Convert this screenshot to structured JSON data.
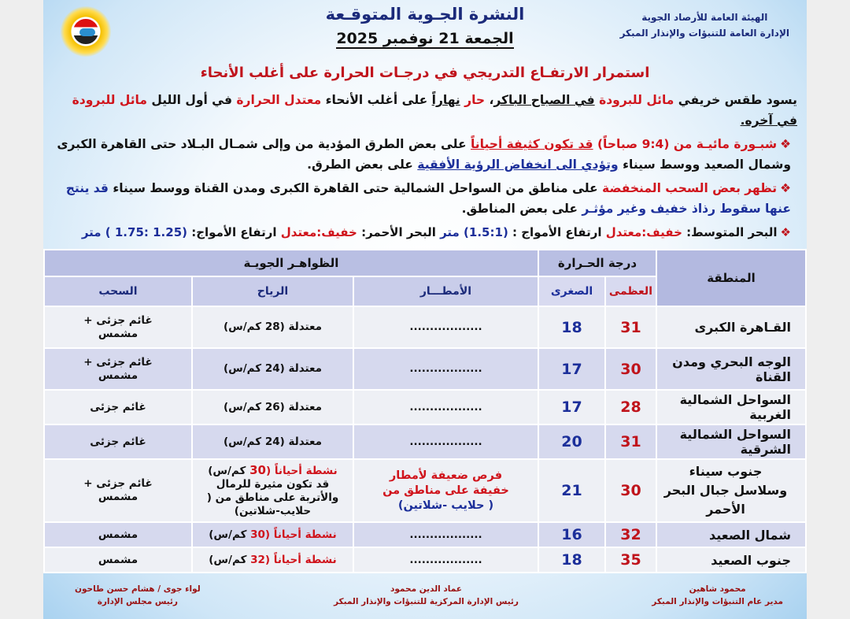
{
  "header": {
    "org_line1": "الهيئة العامة للأرصاد الجوية",
    "org_line2": "الإدارة العامة للتنبؤات والإنذار المبكر",
    "title": "النشرة الجـوية المتوقـعة",
    "date": "الجمعة 21 نوفمبر 2025",
    "logo_text": "EMA"
  },
  "headline": "استمرار الارتفـاع التدريجي في درجـات الحرارة  على أغلب الأنحاء",
  "summary": {
    "p1": "يسود طقس خريفي ",
    "p2": "مائل للبرودة",
    "p3": "في الصباح الباكر",
    "p4": "، ",
    "p5": "حار",
    "p6": " ",
    "p7": "نهاراً",
    "p8": " على أغلب الأنحاء  ",
    "p9": "معتدل الحرارة",
    "p10": " في أول الليل ",
    "p11": "مائل للبرودة",
    "p12": " ",
    "p13": "في آخره."
  },
  "bullets": {
    "fog": {
      "a": "شبـورة مائيـة من (9:4 صباحاً) ",
      "b": "قد تكون كثيفة أحياناً",
      "c": " على بعض الطرق المؤدية من وإلى شمـال البـلاد حتى القاهرة الكبرى وشمال الصعيد ووسط سيناء ",
      "d": "وتؤدي الى انخفاض الرؤية الأفقية",
      "e": " على بعض الطرق."
    },
    "clouds": {
      "a": "تظهر بعض السحب المنخفضة",
      "b": " على مناطق من السواحل الشمالية حتى القاهرة الكبرى ومدن القناة ووسط سيناء ",
      "c": "قد ينتج عنها سقوط رذاذ خفيف وغير مؤثـر",
      "d": " على بعض المناطق."
    },
    "sea": {
      "a": "البحر المتوسط: ",
      "b": "خفيف:معتدل",
      "c": "  ارتفاع الأمواج : ",
      "d": "(1.5:1) متر",
      "e": "     البحر الأحمر: ",
      "f": "خفيف:معتدل",
      "g": " ارتفاع الأمواج: ",
      "h": "(1.25 :1.75 ) متر"
    }
  },
  "table": {
    "headers": {
      "region": "المنطقة",
      "temperature": "درجة الحـرارة",
      "max": "العظمى",
      "min": "الصغرى",
      "phenomena": "الظواهـر الجويـة",
      "rain": "الأمطـــار",
      "wind": "الرياح",
      "clouds": "السحب"
    },
    "rows": [
      {
        "region": "القـاهرة الكبرى",
        "max": "31",
        "min": "18",
        "rain": "..................",
        "wind": "معتدلة (28 كم/س)",
        "clouds": "غائم جزئى + مشمس"
      },
      {
        "region": "الوجه البحري ومدن القناة",
        "max": "30",
        "min": "17",
        "rain": "..................",
        "wind": "معتدلة (24 كم/س)",
        "clouds": "غائم جزئى + مشمس"
      },
      {
        "region": "السواحل الشمالية الغربية",
        "max": "28",
        "min": "17",
        "rain": "..................",
        "wind": "معتدلة (26 كم/س)",
        "clouds": "غائم جزئى"
      },
      {
        "region": "السواحل الشمالية الشرقية",
        "max": "31",
        "min": "20",
        "rain": "..................",
        "wind": "معتدلة (24 كم/س)",
        "clouds": "غائم جزئى"
      },
      {
        "region": "جنوب سيناء",
        "region2": "وسلاسل جبال البحر الأحمر",
        "max": "30",
        "min": "21",
        "rain": "فرص ضعيفة لأمطار خفيفة على مناطق من",
        "rain2": "( حلايب -شلاتين)",
        "wind_a": "نشطة أحياناً (",
        "wind_b": "30",
        "wind_c": " كم/س)",
        "wind2": "قد تكون مثيرة للرمال والأتربة على مناطق من ( حلايب-شلاتين)",
        "clouds": "غائم جزئى + مشمس"
      },
      {
        "region": "شمال الصعيد",
        "max": "32",
        "min": "16",
        "rain": "..................",
        "wind_a": "نشطة أحياناً (",
        "wind_b": "30",
        "wind_c": " كم/س)",
        "clouds": "مشمس"
      },
      {
        "region": "جنوب الصعيد",
        "max": "35",
        "min": "18",
        "rain": "..................",
        "wind_a": "نشطة أحياناً (",
        "wind_b": "32",
        "wind_c": " كم/س)",
        "clouds": "مشمس"
      }
    ]
  },
  "signatures": [
    {
      "name": "محمود شاهين",
      "title": "مدير عام التنبؤات والإنذار المبكر"
    },
    {
      "name": "عماد الدين محمود",
      "title": "رئيس الإدارة المركزية للتنبؤات والإنذار المبكر"
    },
    {
      "name": "لواء جوى / هشام حسن طاحون",
      "title": "رئيس مجلس الإدارة"
    }
  ],
  "colors": {
    "red": "#d0141c",
    "blue": "#1c2f9a",
    "header": "#b9bfe3",
    "row_dark": "#d6d9ee",
    "row_light": "#eef0f5"
  }
}
